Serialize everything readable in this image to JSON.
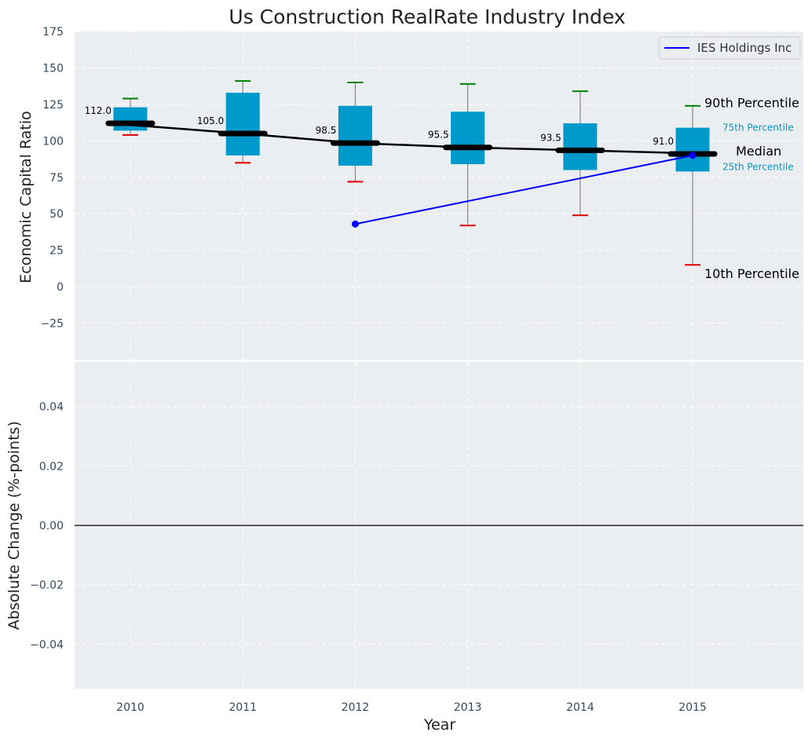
{
  "chart_data": {
    "type": "box",
    "title": "Us Construction RealRate Industry Index",
    "xlabel": "Year",
    "categories": [
      "2010",
      "2011",
      "2012",
      "2013",
      "2014",
      "2015"
    ],
    "top_panel": {
      "ylabel": "Economic Capital Ratio",
      "ylim": [
        -50,
        175
      ],
      "yticks": [
        -25,
        0,
        25,
        50,
        75,
        100,
        125,
        150,
        175
      ],
      "boxes": [
        {
          "year": "2010",
          "p10": 104,
          "p25": 107,
          "median": 112.0,
          "p75": 123,
          "p90": 129
        },
        {
          "year": "2011",
          "p10": 85,
          "p25": 90,
          "median": 105.0,
          "p75": 133,
          "p90": 141
        },
        {
          "year": "2012",
          "p10": 72,
          "p25": 83,
          "median": 98.5,
          "p75": 124,
          "p90": 140
        },
        {
          "year": "2013",
          "p10": 42,
          "p25": 84,
          "median": 95.5,
          "p75": 120,
          "p90": 139
        },
        {
          "year": "2014",
          "p10": 49,
          "p25": 80,
          "median": 93.5,
          "p75": 112,
          "p90": 134
        },
        {
          "year": "2015",
          "p10": 15,
          "p25": 79,
          "median": 91.0,
          "p75": 109,
          "p90": 124
        }
      ],
      "median_labels": [
        "112.0",
        "105.0",
        "98.5",
        "95.5",
        "93.5",
        "91.0"
      ],
      "series": [
        {
          "name": "IES Holdings Inc",
          "x": [
            "2012",
            "2015"
          ],
          "values": [
            43,
            90
          ]
        }
      ],
      "annotations": {
        "p90": "90th Percentile",
        "p75": "75th Percentile",
        "median": "Median",
        "p25": "25th Percentile",
        "p10": "10th Percentile"
      },
      "legend": {
        "position": "top-right",
        "label": "IES Holdings Inc"
      }
    },
    "bottom_panel": {
      "ylabel": "Absolute Change (%-points)",
      "ylim": [
        -0.055,
        0.055
      ],
      "yticks": [
        "−0.04",
        "−0.02",
        "0.00",
        "0.02",
        "0.04"
      ],
      "ytick_values": [
        -0.04,
        -0.02,
        0.0,
        0.02,
        0.04
      ]
    },
    "grid": true,
    "colors": {
      "box": "#0099cc",
      "median": "#000000",
      "p90_whisker": "#008000",
      "p10_whisker": "#e00000",
      "series": "#0000ff",
      "panel_bg": "#eaeef0",
      "tick_text": "#34495e"
    }
  }
}
